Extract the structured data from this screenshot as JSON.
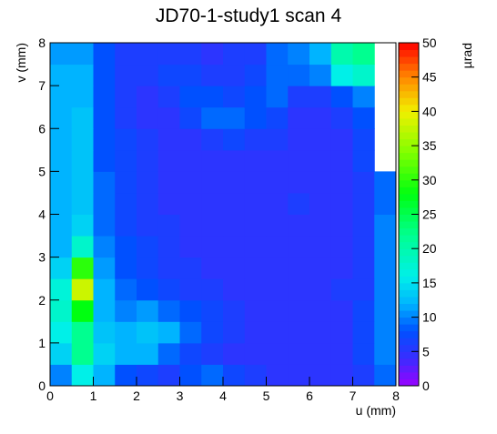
{
  "chart_data": {
    "type": "heatmap",
    "title": "JD70-1-study1 scan 4",
    "xlabel": "u (mm)",
    "ylabel": "v (mm)",
    "zlabel": "µrad",
    "x_bins": [
      0,
      0.5,
      1,
      1.5,
      2,
      2.5,
      3,
      3.5,
      4,
      4.5,
      5,
      5.5,
      6,
      6.5,
      7,
      7.5,
      8
    ],
    "y_bins": [
      0,
      0.5,
      1,
      1.5,
      2,
      2.5,
      3,
      3.5,
      4,
      4.5,
      5,
      5.5,
      6,
      6.5,
      7,
      7.5,
      8
    ],
    "z": [
      [
        10,
        16,
        12,
        8,
        7,
        6,
        8,
        9,
        7,
        6,
        5,
        5,
        5,
        5,
        6,
        9
      ],
      [
        14,
        22,
        14,
        12,
        12,
        9,
        7,
        6,
        5,
        5,
        5,
        5,
        5,
        5,
        7,
        10
      ],
      [
        16,
        22,
        13,
        12,
        13,
        12,
        9,
        7,
        6,
        5,
        5,
        5,
        5,
        5,
        7,
        10
      ],
      [
        18,
        28,
        12,
        10,
        11,
        9,
        8,
        7,
        6,
        5,
        5,
        5,
        5,
        5,
        7,
        10
      ],
      [
        17,
        38,
        12,
        9,
        8,
        7,
        6,
        6,
        5,
        5,
        5,
        5,
        5,
        6,
        6,
        10
      ],
      [
        14,
        30,
        11,
        8,
        7,
        6,
        6,
        5,
        5,
        5,
        5,
        5,
        5,
        5,
        6,
        10
      ],
      [
        12,
        18,
        10,
        8,
        7,
        6,
        5,
        5,
        5,
        5,
        5,
        5,
        5,
        5,
        6,
        10
      ],
      [
        12,
        14,
        9,
        7,
        6,
        6,
        5,
        5,
        5,
        5,
        5,
        5,
        5,
        5,
        6,
        10
      ],
      [
        12,
        13,
        9,
        7,
        6,
        5,
        5,
        5,
        5,
        5,
        5,
        6,
        5,
        5,
        6,
        9
      ],
      [
        12,
        13,
        9,
        7,
        6,
        5,
        5,
        5,
        5,
        5,
        5,
        5,
        5,
        5,
        6,
        9
      ],
      [
        12,
        13,
        8,
        7,
        6,
        5,
        5,
        5,
        5,
        5,
        5,
        5,
        5,
        5,
        7,
        null
      ],
      [
        12,
        13,
        8,
        7,
        6,
        5,
        5,
        6,
        7,
        6,
        6,
        5,
        5,
        5,
        7,
        null
      ],
      [
        12,
        13,
        8,
        6,
        5,
        5,
        7,
        9,
        9,
        8,
        7,
        5,
        5,
        6,
        8,
        null
      ],
      [
        12,
        12,
        8,
        6,
        5,
        6,
        8,
        8,
        7,
        8,
        9,
        6,
        6,
        8,
        10,
        null
      ],
      [
        12,
        12,
        8,
        6,
        6,
        7,
        7,
        6,
        6,
        7,
        9,
        9,
        10,
        16,
        18,
        null
      ],
      [
        11,
        11,
        8,
        6,
        6,
        6,
        6,
        5,
        6,
        6,
        9,
        10,
        12,
        20,
        22,
        null
      ]
    ],
    "xlim": [
      0,
      8
    ],
    "xticks": [
      0,
      1,
      2,
      3,
      4,
      5,
      6,
      7,
      8
    ],
    "ylim": [
      0,
      8
    ],
    "yticks": [
      0,
      1,
      2,
      3,
      4,
      5,
      6,
      7,
      8
    ],
    "zlim": [
      0,
      50
    ],
    "zticks": [
      0,
      5,
      10,
      15,
      20,
      25,
      30,
      35,
      40,
      45,
      50
    ],
    "colorscale": [
      [
        0,
        "#9a00ff"
      ],
      [
        4,
        "#3a2cff"
      ],
      [
        8,
        "#0050ff"
      ],
      [
        12,
        "#00b4ff"
      ],
      [
        16,
        "#00f0e8"
      ],
      [
        22,
        "#00ff90"
      ],
      [
        28,
        "#00ff10"
      ],
      [
        34,
        "#80ff00"
      ],
      [
        40,
        "#f0f000"
      ],
      [
        45,
        "#ff8800"
      ],
      [
        50,
        "#ff0000"
      ]
    ]
  }
}
